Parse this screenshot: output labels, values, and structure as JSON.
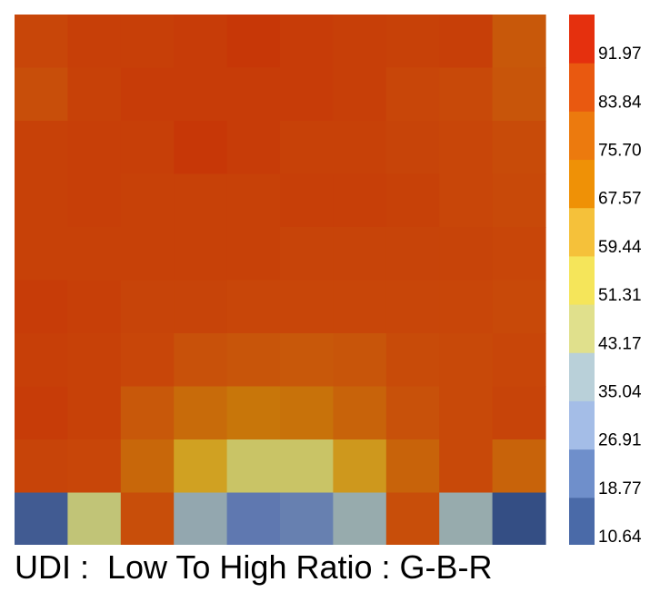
{
  "chart_data": {
    "type": "heatmap",
    "title": "UDI :  Low To High Ratio : G-B-R",
    "rows": 10,
    "cols": 10,
    "values": [
      [
        86,
        89,
        89,
        90,
        92,
        90,
        89,
        88,
        89,
        80
      ],
      [
        83,
        88,
        90,
        90,
        90,
        90,
        89,
        86,
        85,
        81
      ],
      [
        88,
        89,
        89,
        92,
        90,
        88,
        88,
        87,
        86,
        84
      ],
      [
        88,
        89,
        88,
        88,
        88,
        89,
        89,
        88,
        86,
        85
      ],
      [
        88,
        88,
        88,
        88,
        88,
        87,
        87,
        87,
        87,
        86
      ],
      [
        90,
        89,
        87,
        87,
        86,
        86,
        86,
        86,
        86,
        85
      ],
      [
        89,
        88,
        86,
        82,
        81,
        80,
        81,
        84,
        85,
        86
      ],
      [
        90,
        88,
        80,
        75,
        72,
        73,
        77,
        82,
        85,
        87
      ],
      [
        87,
        86,
        76,
        62,
        48,
        48,
        64,
        77,
        85,
        77
      ],
      [
        14,
        45,
        83,
        35,
        22,
        24,
        36,
        83,
        36,
        10
      ]
    ],
    "colorbar": {
      "ticks": [
        "10.64",
        "18.77",
        "26.91",
        "35.04",
        "43.17",
        "51.31",
        "59.44",
        "67.57",
        "75.70",
        "83.84",
        "91.97"
      ],
      "bins": [
        {
          "from": 10.64,
          "to": 18.77,
          "color": "#4a6aa8"
        },
        {
          "from": 18.77,
          "to": 26.91,
          "color": "#6f8fcb"
        },
        {
          "from": 26.91,
          "to": 35.04,
          "color": "#a4bde7"
        },
        {
          "from": 35.04,
          "to": 43.17,
          "color": "#b9d0d9"
        },
        {
          "from": 43.17,
          "to": 51.31,
          "color": "#e0e08c"
        },
        {
          "from": 51.31,
          "to": 59.44,
          "color": "#f5e55a"
        },
        {
          "from": 59.44,
          "to": 67.57,
          "color": "#f5c13a"
        },
        {
          "from": 67.57,
          "to": 75.7,
          "color": "#ef9106"
        },
        {
          "from": 75.7,
          "to": 83.84,
          "color": "#ec7a0e"
        },
        {
          "from": 83.84,
          "to": 91.97,
          "color": "#e95910"
        },
        {
          "from": 91.97,
          "to": 100.1,
          "color": "#e5300e"
        }
      ]
    },
    "grid": false,
    "legend_position": "right"
  }
}
